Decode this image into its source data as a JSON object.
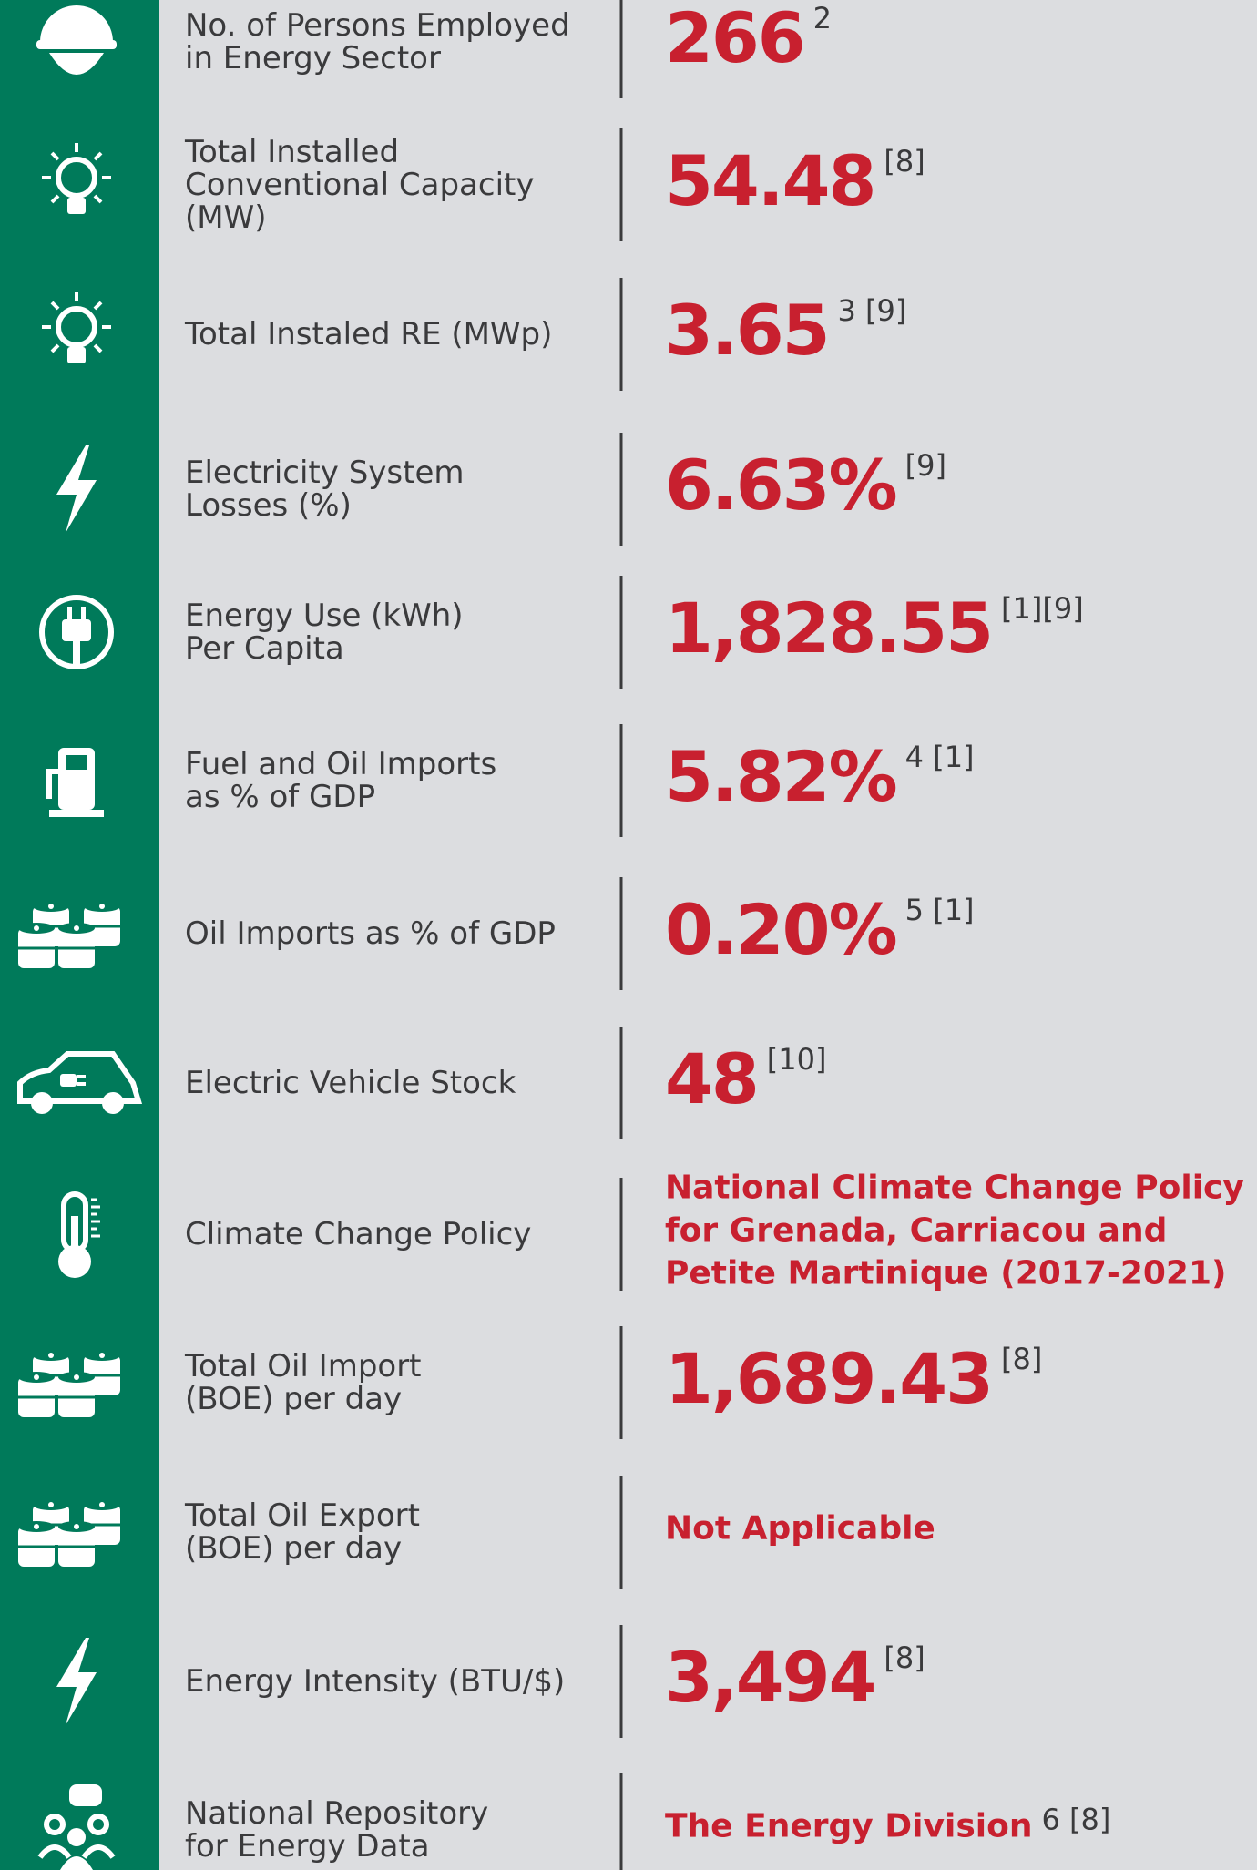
{
  "rows": [
    {
      "label": [
        "No. of Persons Employed",
        "in Energy Sector"
      ],
      "value": [
        "266"
      ],
      "note": "2"
    },
    {
      "label": [
        "Total Installed",
        "Conventional Capacity",
        "(MW)"
      ],
      "value": [
        "54.48"
      ],
      "note": "[8]"
    },
    {
      "label": [
        "Total Instaled RE (MWp)"
      ],
      "value": [
        "3.65"
      ],
      "note": "3 [9]"
    },
    {
      "label": [
        "Electricity System",
        "Losses (%)"
      ],
      "value": [
        "6.63%"
      ],
      "note": "[9]"
    },
    {
      "label": [
        "Energy Use (kWh)",
        "Per Capita"
      ],
      "value": [
        "1,828.55"
      ],
      "note": "[1][9]"
    },
    {
      "label": [
        "Fuel and Oil Imports",
        "as % of GDP"
      ],
      "value": [
        "5.82%"
      ],
      "note": "4 [1]"
    },
    {
      "label": [
        "Oil Imports as % of GDP"
      ],
      "value": [
        "0.20%"
      ],
      "note": "5 [1]"
    },
    {
      "label": [
        "Electric Vehicle Stock"
      ],
      "value": [
        "48"
      ],
      "note": "[10]"
    },
    {
      "label": [
        "Climate Change Policy"
      ],
      "value": [
        "National Climate Change Policy",
        "for Grenada, Carriacou and",
        "Petite Martinique (2017-2021)"
      ]
    },
    {
      "label": [
        "Total Oil Import",
        "(BOE) per day"
      ],
      "value": [
        "1,689.43"
      ],
      "note": "[8]"
    },
    {
      "label": [
        "Total Oil Export",
        "(BOE) per day"
      ],
      "value": [
        "Not Applicable"
      ]
    },
    {
      "label": [
        "Energy Intensity (BTU/$)"
      ],
      "value": [
        "3,494"
      ],
      "note": "[8]"
    },
    {
      "label": [
        "National Repository",
        "for Energy Data"
      ],
      "value": [
        "The Energy Division"
      ],
      "note": "6 [8]"
    }
  ]
}
